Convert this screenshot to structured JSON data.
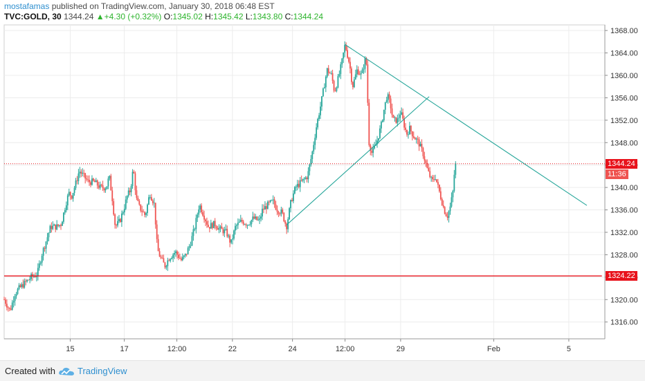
{
  "header": {
    "author": "mostafamas",
    "published_text": "published on TradingView.com, January 30, 2018 06:48 EST",
    "symbol": "TVC:GOLD, 30",
    "last": "1344.24",
    "change": "+4.30 (+0.32%)",
    "open_label": "O:",
    "open_value": "1345.02",
    "high_label": "H:",
    "high_value": "1345.42",
    "low_label": "L:",
    "low_value": "1343.80",
    "close_label": "C:",
    "close_value": "1344.24"
  },
  "footer": {
    "created_with": "Created with",
    "brand": "TradingView"
  },
  "colors": {
    "up": "#26a69a",
    "down": "#ef5350",
    "support_line": "#e8131c",
    "trend_line": "#26a69a",
    "last_price": "#e8131c",
    "countdown_tag": "#ef5350"
  },
  "chart_data": {
    "type": "candlestick",
    "ylim": [
      1313,
      1369
    ],
    "y_ticks": [
      1316,
      1320,
      1324,
      1328,
      1332,
      1336,
      1340,
      1344,
      1348,
      1352,
      1356,
      1360,
      1364,
      1368
    ],
    "x_ticks": [
      "15",
      "17",
      "12:00",
      "22",
      "24",
      "12:00",
      "29",
      "Feb",
      "5"
    ],
    "last_price": 1344.24,
    "last_price_label": "1344.24",
    "countdown": "11:36",
    "support_level": 1324.22,
    "support_label": "1324.22",
    "price_path": [
      [
        0.0,
        1320.0
      ],
      [
        2.0,
        1318.0
      ],
      [
        3.5,
        1321.0
      ],
      [
        5.0,
        1322.0
      ],
      [
        7.0,
        1323.0
      ],
      [
        9.0,
        1324.0
      ],
      [
        11.0,
        1324.5
      ],
      [
        12.5,
        1328.0
      ],
      [
        14.0,
        1330.5
      ],
      [
        15.5,
        1333.0
      ],
      [
        17.5,
        1333.0
      ],
      [
        19.0,
        1333.5
      ],
      [
        20.5,
        1337.0
      ],
      [
        21.5,
        1339.0
      ],
      [
        22.5,
        1338.5
      ],
      [
        24.0,
        1341.0
      ],
      [
        25.0,
        1343.0
      ],
      [
        26.5,
        1342.0
      ],
      [
        28.0,
        1341.0
      ],
      [
        30.0,
        1341.0
      ],
      [
        32.0,
        1340.0
      ],
      [
        34.0,
        1340.0
      ],
      [
        35.0,
        1342.0
      ],
      [
        36.0,
        1338.0
      ],
      [
        37.0,
        1333.0
      ],
      [
        38.5,
        1334.0
      ],
      [
        40.0,
        1336.5
      ],
      [
        41.0,
        1338.5
      ],
      [
        42.0,
        1339.5
      ],
      [
        43.0,
        1343.5
      ],
      [
        44.0,
        1338.0
      ],
      [
        45.0,
        1336.5
      ],
      [
        47.0,
        1335.0
      ],
      [
        48.5,
        1339.0
      ],
      [
        50.0,
        1337.0
      ],
      [
        51.0,
        1329.0
      ],
      [
        52.0,
        1327.5
      ],
      [
        53.5,
        1326.0
      ],
      [
        55.0,
        1327.5
      ],
      [
        57.0,
        1328.5
      ],
      [
        59.0,
        1327.0
      ],
      [
        60.5,
        1328.0
      ],
      [
        62.0,
        1330.0
      ],
      [
        63.5,
        1333.0
      ],
      [
        65.0,
        1337.0
      ],
      [
        66.5,
        1335.0
      ],
      [
        68.0,
        1333.0
      ],
      [
        70.0,
        1333.5
      ],
      [
        72.0,
        1332.5
      ],
      [
        74.0,
        1332.0
      ],
      [
        75.5,
        1330.0
      ],
      [
        77.0,
        1333.0
      ],
      [
        79.0,
        1334.0
      ],
      [
        81.0,
        1333.5
      ],
      [
        83.0,
        1334.5
      ],
      [
        85.0,
        1334.0
      ],
      [
        86.0,
        1336.0
      ],
      [
        88.0,
        1337.0
      ],
      [
        89.5,
        1337.5
      ],
      [
        91.0,
        1336.0
      ],
      [
        92.5,
        1335.5
      ],
      [
        94.0,
        1333.0
      ],
      [
        95.5,
        1337.5
      ],
      [
        97.0,
        1340.0
      ],
      [
        99.0,
        1341.0
      ],
      [
        101.0,
        1342.0
      ],
      [
        102.5,
        1346.0
      ],
      [
        104.0,
        1351.0
      ],
      [
        105.5,
        1355.0
      ],
      [
        106.5,
        1358.0
      ],
      [
        107.5,
        1361.0
      ],
      [
        109.0,
        1360.0
      ],
      [
        110.0,
        1357.0
      ],
      [
        111.5,
        1360.0
      ],
      [
        112.5,
        1362.5
      ],
      [
        113.5,
        1365.5
      ],
      [
        115.0,
        1362.0
      ],
      [
        116.0,
        1358.0
      ],
      [
        117.5,
        1361.0
      ],
      [
        119.0,
        1360.0
      ],
      [
        120.5,
        1363.5
      ],
      [
        121.0,
        1356.0
      ],
      [
        121.5,
        1348.0
      ],
      [
        122.5,
        1346.0
      ],
      [
        124.0,
        1348.0
      ],
      [
        125.5,
        1351.0
      ],
      [
        126.5,
        1354.0
      ],
      [
        127.5,
        1356.5
      ],
      [
        128.5,
        1355.0
      ],
      [
        129.5,
        1352.0
      ],
      [
        131.0,
        1352.0
      ],
      [
        132.0,
        1353.5
      ],
      [
        133.0,
        1351.5
      ],
      [
        134.0,
        1349.5
      ],
      [
        135.0,
        1350.5
      ],
      [
        136.5,
        1349.0
      ],
      [
        138.0,
        1348.0
      ],
      [
        139.5,
        1346.0
      ],
      [
        141.0,
        1343.0
      ],
      [
        142.5,
        1341.0
      ],
      [
        143.5,
        1342.0
      ],
      [
        145.0,
        1339.0
      ],
      [
        146.5,
        1336.0
      ],
      [
        147.5,
        1334.8
      ],
      [
        148.5,
        1336.5
      ],
      [
        149.5,
        1339.5
      ],
      [
        150.0,
        1343.5
      ],
      [
        150.5,
        1344.24
      ]
    ],
    "drawings": [
      {
        "name": "descending-trendline",
        "from": [
          113.5,
          1365.5
        ],
        "to": [
          194,
          1336.8
        ]
      },
      {
        "name": "ascending-trendline",
        "from": [
          94,
          1333.3
        ],
        "to": [
          141.5,
          1356.2
        ]
      },
      {
        "name": "support-line",
        "from": [
          0,
          1324.22
        ],
        "to": [
          199,
          1324.22
        ]
      }
    ],
    "x_tick_positions": [
      22.0,
      40.0,
      57.5,
      76.0,
      96.0,
      113.5,
      132.0,
      163.0,
      188.0
    ]
  }
}
